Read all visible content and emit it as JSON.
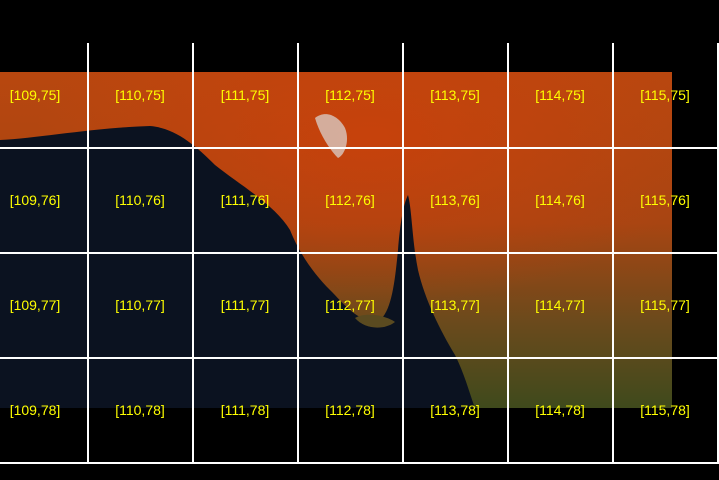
{
  "map": {
    "label_color": "#ffff00",
    "grid_color": "#ffffff",
    "land_color": "#b4460e",
    "ocean_color": "#0b1220",
    "columns": [
      109,
      110,
      111,
      112,
      113,
      114,
      115
    ],
    "rows": [
      75,
      76,
      77,
      78
    ],
    "tiles": [
      [
        "[109,75]",
        "[110,75]",
        "[111,75]",
        "[112,75]",
        "[113,75]",
        "[114,75]",
        "[115,75]"
      ],
      [
        "[109,76]",
        "[110,76]",
        "[111,76]",
        "[112,76]",
        "[113,76]",
        "[114,76]",
        "[115,76]"
      ],
      [
        "[109,77]",
        "[110,77]",
        "[111,77]",
        "[112,77]",
        "[113,77]",
        "[114,77]",
        "[115,77]"
      ],
      [
        "[109,78]",
        "[110,78]",
        "[111,78]",
        "[112,78]",
        "[113,78]",
        "[114,78]",
        "[115,78]"
      ]
    ]
  }
}
